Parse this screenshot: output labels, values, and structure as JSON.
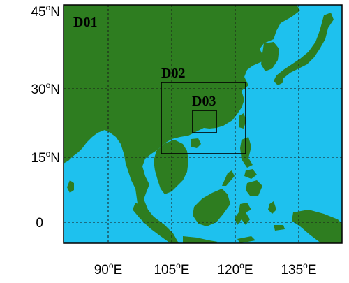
{
  "map": {
    "colors": {
      "land": "#2e7d20",
      "ocean": "#1ec1ee",
      "frame": "#000000",
      "gridline": "#1a1a1a"
    },
    "lat_labels": [
      {
        "deg": "45",
        "unit": "o",
        "hemi": "N"
      },
      {
        "deg": "30",
        "unit": "o",
        "hemi": "N"
      },
      {
        "deg": "15",
        "unit": "o",
        "hemi": "N"
      },
      {
        "deg": "0",
        "unit": "",
        "hemi": ""
      }
    ],
    "lon_labels": [
      {
        "deg": "90",
        "unit": "o",
        "hemi": "E"
      },
      {
        "deg": "105",
        "unit": "o",
        "hemi": "E"
      },
      {
        "deg": "120",
        "unit": "o",
        "hemi": "E"
      },
      {
        "deg": "135",
        "unit": "o",
        "hemi": "E"
      }
    ],
    "domains": [
      {
        "label": "D01"
      },
      {
        "label": "D02"
      },
      {
        "label": "D03"
      }
    ]
  }
}
